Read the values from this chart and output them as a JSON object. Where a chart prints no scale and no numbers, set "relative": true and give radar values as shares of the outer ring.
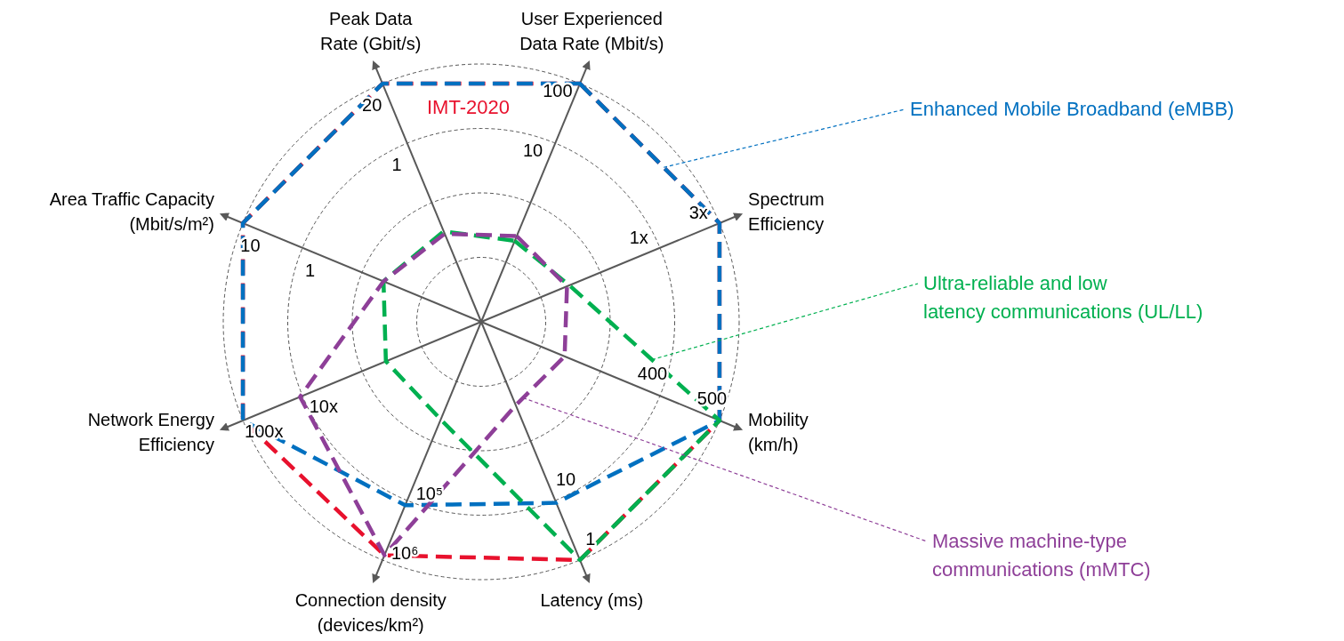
{
  "chart_data": {
    "type": "radar",
    "relative": true,
    "grid": true,
    "line_style": "dashed",
    "marker": "none",
    "categories": [
      "User Experienced\nData Rate (Mbit/s)",
      "Spectrum\nEfficiency",
      "Mobility\n(km/h)",
      "Latency (ms)",
      "Connection density\n(devices/km²)",
      "Network Energy\nEfficiency",
      "Area Traffic Capacity\n(Mbit/s/m²)",
      "Peak Data\nRate (Gbit/s)"
    ],
    "series": [
      {
        "name": "IMT-2020",
        "color": "#e8112d",
        "values": [
          1,
          1,
          1,
          1,
          0.98,
          1,
          1,
          1
        ]
      },
      {
        "name": "Enhanced Mobile Broadband (eMBB)",
        "color": "#0070c0",
        "values": [
          1,
          1,
          1,
          0.76,
          0.77,
          1,
          1,
          1
        ]
      },
      {
        "name": "Ultra-reliable and low\nlatency communications (UL/LL)",
        "color": "#00b050",
        "values": [
          0.34,
          0.37,
          1,
          1,
          0.41,
          0.4,
          0.41,
          0.38
        ]
      },
      {
        "name": "Massive machine-type\ncommunications (mMTC)",
        "color": "#8e3f98",
        "values": [
          0.36,
          0.36,
          0.35,
          0.35,
          0.98,
          0.76,
          0.41,
          0.37
        ]
      }
    ],
    "annotations": [
      "100",
      "10",
      "3x",
      "1x",
      "500",
      "400",
      "1",
      "10",
      "10⁶",
      "10⁵",
      "100x",
      "10x",
      "10",
      "1",
      "20",
      "1"
    ]
  }
}
